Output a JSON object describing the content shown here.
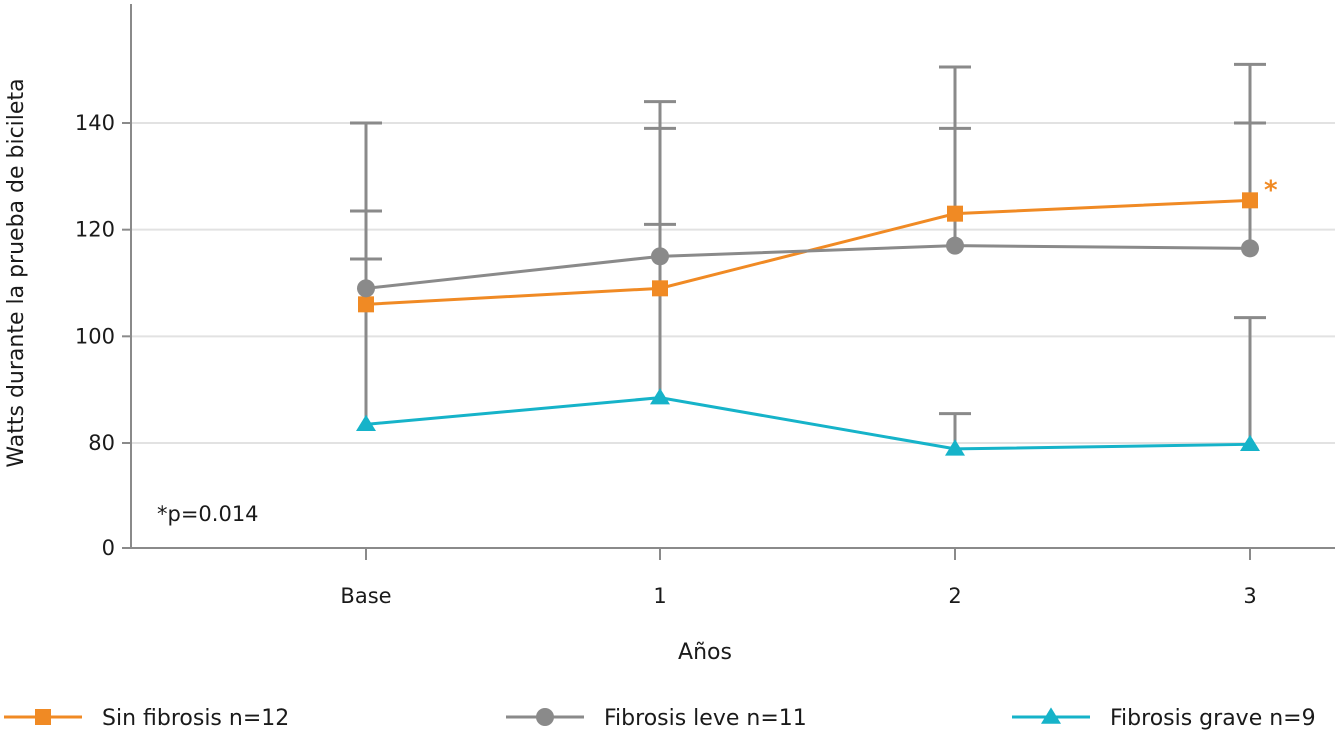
{
  "colors": {
    "sin_fibrosis": "#f08a24",
    "fibrosis_leve": "#8a8a8a",
    "fibrosis_grave": "#16b3c9",
    "error_bar": "#8a8a8a",
    "grid": "#e2e2e2",
    "axis": "#8a8a8a"
  },
  "chart_data": {
    "type": "line",
    "title": "",
    "xlabel": "Años",
    "ylabel": "Watts durante la prueba de bicileta",
    "categories": [
      "Base",
      "1",
      "2",
      "3"
    ],
    "ylim": [
      0,
      160
    ],
    "yticks": [
      0,
      80,
      100,
      120,
      140
    ],
    "grid": true,
    "legend": "bottom",
    "annotation": "*p=0.014",
    "significance_marker": "*",
    "series": [
      {
        "name": "Sin fibrosis n=12",
        "marker": "square",
        "color_key": "sin_fibrosis",
        "values": [
          106,
          109,
          123,
          125.5
        ],
        "error_upper": [
          123.5,
          139,
          139,
          140
        ],
        "significant_at": 3
      },
      {
        "name": "Fibrosis leve n=11",
        "marker": "circle",
        "color_key": "fibrosis_leve",
        "values": [
          109,
          115,
          117,
          116.5
        ],
        "error_upper": [
          140,
          144,
          150.5,
          151
        ]
      },
      {
        "name": "Fibrosis grave n=9",
        "marker": "triangle",
        "color_key": "fibrosis_grave",
        "values": [
          83.5,
          88.5,
          75.5,
          79
        ],
        "error_upper": [
          114.5,
          121,
          85.5,
          103.5
        ]
      }
    ]
  }
}
